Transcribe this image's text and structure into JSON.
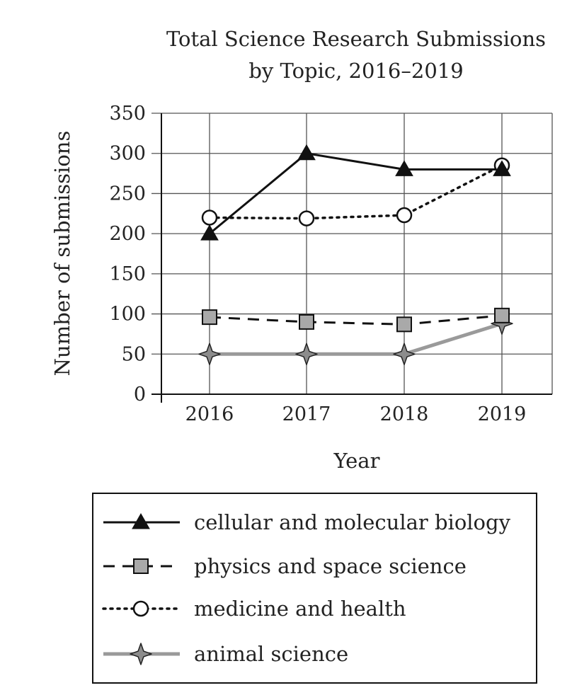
{
  "chart_data": {
    "type": "line",
    "title_lines": [
      "Total Science Research Submissions",
      "by Topic, 2016–2019"
    ],
    "xlabel": "Year",
    "ylabel": "Number of submissions",
    "x": [
      "2016",
      "2017",
      "2018",
      "2019"
    ],
    "ylim": [
      0,
      350
    ],
    "yticks": [
      "0",
      "50",
      "100",
      "150",
      "200",
      "250",
      "300",
      "350"
    ],
    "grid": true,
    "legend_placement": "bottom",
    "series": [
      {
        "name": "cellular and molecular biology",
        "values": [
          200,
          300,
          280,
          280
        ],
        "line": "solid",
        "marker": "triangle",
        "color": "#111111"
      },
      {
        "name": "physics and space science",
        "values": [
          96,
          90,
          87,
          98
        ],
        "line": "dashed",
        "marker": "square",
        "color": "#111111",
        "marker_fill": "#a9a9a9"
      },
      {
        "name": "medicine and health",
        "values": [
          220,
          219,
          223,
          285
        ],
        "line": "dotted",
        "marker": "circle",
        "color": "#111111",
        "marker_fill": "#ffffff"
      },
      {
        "name": "animal science",
        "values": [
          50,
          50,
          50,
          88
        ],
        "line": "solid",
        "marker": "star",
        "color": "#9a9a9a",
        "marker_fill": "#8c8c8c"
      }
    ]
  }
}
